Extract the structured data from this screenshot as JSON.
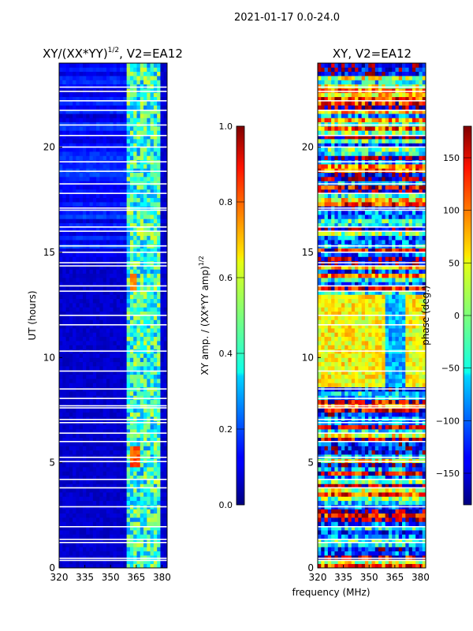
{
  "suptitle": "2021-01-17 0.0-24.0",
  "shared_xlabel": "frequency (MHz)",
  "chart_data": [
    {
      "type": "heatmap",
      "title_main": "XY/(XX*YY)",
      "title_sup": "1/2",
      "title_tail": ", V2=EA12",
      "ylabel": "UT (hours)",
      "xlim": [
        320,
        383
      ],
      "ylim": [
        0,
        24
      ],
      "xticks": [
        320,
        335,
        350,
        365,
        380
      ],
      "yticks": [
        0,
        5,
        10,
        15,
        20
      ],
      "colorbar": {
        "label_main": "XY amp. / (XX*YY amp)",
        "label_sup": "1/2",
        "range": [
          0.0,
          1.0
        ],
        "ticks": [
          "0.0",
          "0.2",
          "0.4",
          "0.6",
          "0.8",
          "1.0"
        ],
        "cmap": "jet"
      },
      "background_value": 0.05,
      "bright_channel_band_mhz": [
        360,
        380
      ],
      "bright_band_value": 0.42,
      "hot_spots": [
        {
          "freq_range": [
            362,
            368
          ],
          "ut_range": [
            4.8,
            5.8
          ],
          "value": 0.75
        },
        {
          "freq_range": [
            362,
            366
          ],
          "ut_range": [
            13.3,
            14.0
          ],
          "value": 0.7
        }
      ]
    },
    {
      "type": "heatmap",
      "title": "XY, V2=EA12",
      "xlim": [
        320,
        383
      ],
      "ylim": [
        0,
        24
      ],
      "xticks": [
        320,
        335,
        350,
        365,
        380
      ],
      "yticks": [
        0,
        5,
        10,
        15,
        20
      ],
      "colorbar": {
        "label": "phase (deg.)",
        "range": [
          -180,
          180
        ],
        "ticks": [
          "−150",
          "−100",
          "−50",
          "0",
          "50",
          "100",
          "150"
        ],
        "cmap": "jet"
      },
      "dominant_phase_deg": 45,
      "notes": "phase varies strongly with time; mostly yellow/orange (~45 deg) between 8.5 and 13 h"
    }
  ]
}
